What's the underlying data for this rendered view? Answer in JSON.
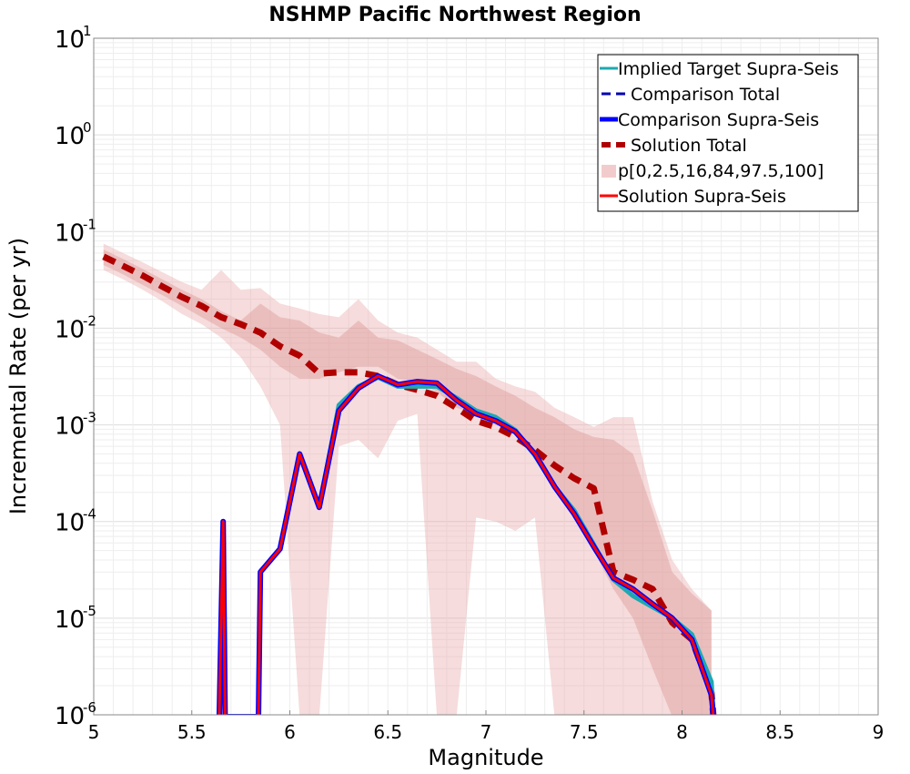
{
  "chart_data": {
    "type": "line",
    "title": "NSHMP Pacific Northwest Region",
    "xlabel": "Magnitude",
    "ylabel": "Incremental Rate (per yr)",
    "xlim": [
      5,
      9
    ],
    "ylim": [
      1e-06,
      10
    ],
    "yscale": "log",
    "grid": true,
    "legend_position": "top-right",
    "x_ticks": [
      "5",
      "5.5",
      "6",
      "6.5",
      "7",
      "7.5",
      "8",
      "8.5",
      "9"
    ],
    "y_ticks": [
      {
        "base": "10",
        "exp": "-6"
      },
      {
        "base": "10",
        "exp": "-5"
      },
      {
        "base": "10",
        "exp": "-4"
      },
      {
        "base": "10",
        "exp": "-3"
      },
      {
        "base": "10",
        "exp": "-2"
      },
      {
        "base": "10",
        "exp": "-1"
      },
      {
        "base": "10",
        "exp": "0"
      },
      {
        "base": "10",
        "exp": "1"
      }
    ],
    "legend": [
      {
        "label": "Implied Target Supra-Seis",
        "color": "#1fa8b0",
        "style": "solid"
      },
      {
        "label": "Comparison Total",
        "color": "#0000b0",
        "style": "dashed"
      },
      {
        "label": "Comparison Supra-Seis",
        "color": "#0000ff",
        "style": "thick"
      },
      {
        "label": "Solution Total",
        "color": "#b00000",
        "style": "dashed-thick"
      },
      {
        "label": "p[0,2.5,16,84,97.5,100]",
        "color": "#f2cccc",
        "style": "band"
      },
      {
        "label": "Solution Supra-Seis",
        "color": "#ff0000",
        "style": "solid"
      }
    ],
    "band_outer": {
      "x": [
        5.05,
        5.15,
        5.25,
        5.35,
        5.45,
        5.55,
        5.65,
        5.75,
        5.85,
        5.95,
        6.05,
        6.15,
        6.25,
        6.35,
        6.45,
        6.55,
        6.65,
        6.75,
        6.85,
        6.95,
        7.05,
        7.15,
        7.25,
        7.35,
        7.45,
        7.55,
        7.65,
        7.75,
        7.85,
        7.95,
        8.05,
        8.15
      ],
      "upper": [
        0.075,
        0.06,
        0.048,
        0.038,
        0.03,
        0.025,
        0.04,
        0.025,
        0.026,
        0.018,
        0.016,
        0.014,
        0.013,
        0.02,
        0.012,
        0.009,
        0.008,
        0.006,
        0.0045,
        0.0045,
        0.003,
        0.0025,
        0.0022,
        0.0015,
        0.0012,
        0.00095,
        0.0012,
        0.0012,
        0.00016,
        4e-05,
        2e-05,
        1.2e-05
      ],
      "lower": [
        0.04,
        0.032,
        0.025,
        0.019,
        0.014,
        0.011,
        0.008,
        0.005,
        0.0025,
        0.001,
        1e-07,
        1e-07,
        0.0006,
        0.0007,
        0.00045,
        0.0011,
        0.0013,
        1e-07,
        1e-07,
        0.00011,
        0.0001,
        8e-05,
        0.00011,
        1e-07,
        1e-07,
        1e-07,
        1e-07,
        1e-07,
        1e-07,
        1e-07,
        1e-07,
        1e-07
      ]
    },
    "band_inner": {
      "x": [
        5.05,
        5.15,
        5.25,
        5.35,
        5.45,
        5.55,
        5.65,
        5.75,
        5.85,
        5.95,
        6.05,
        6.15,
        6.25,
        6.35,
        6.45,
        6.55,
        6.65,
        6.75,
        6.85,
        6.95,
        7.05,
        7.15,
        7.25,
        7.35,
        7.45,
        7.55,
        7.65,
        7.75,
        7.85,
        7.95,
        8.05,
        8.15
      ],
      "upper": [
        0.065,
        0.052,
        0.041,
        0.032,
        0.025,
        0.02,
        0.015,
        0.012,
        0.018,
        0.013,
        0.012,
        0.009,
        0.008,
        0.012,
        0.008,
        0.0075,
        0.006,
        0.0048,
        0.0038,
        0.0032,
        0.0025,
        0.002,
        0.0015,
        0.0012,
        0.0009,
        0.00075,
        0.0007,
        0.0005,
        0.00013,
        3e-05,
        1.8e-05,
        1.2e-05
      ],
      "lower": [
        0.045,
        0.036,
        0.028,
        0.022,
        0.017,
        0.013,
        0.01,
        0.008,
        0.006,
        0.004,
        0.003,
        0.003,
        0.0035,
        0.004,
        0.004,
        0.003,
        0.0028,
        0.0022,
        0.0015,
        0.0013,
        0.001,
        0.0008,
        0.0005,
        0.00025,
        0.00012,
        5e-05,
        2e-05,
        1e-05,
        3e-06,
        1e-07,
        1e-07,
        1e-07
      ]
    },
    "series": [
      {
        "name": "Solution Total",
        "color": "#b00000",
        "x": [
          5.05,
          5.15,
          5.25,
          5.35,
          5.45,
          5.55,
          5.65,
          5.75,
          5.85,
          5.95,
          6.05,
          6.15,
          6.25,
          6.35,
          6.45,
          6.55,
          6.65,
          6.75,
          6.85,
          6.95,
          7.05,
          7.15,
          7.25,
          7.35,
          7.45,
          7.55,
          7.65,
          7.75,
          7.85,
          7.95,
          8.05,
          8.15,
          8.16
        ],
        "values": [
          0.055,
          0.044,
          0.035,
          0.027,
          0.021,
          0.017,
          0.013,
          0.011,
          0.009,
          0.0065,
          0.0052,
          0.0034,
          0.0035,
          0.0035,
          0.0032,
          0.0026,
          0.0023,
          0.002,
          0.0015,
          0.0011,
          0.00095,
          0.00075,
          0.00055,
          0.00038,
          0.00028,
          0.00022,
          3e-05,
          2.5e-05,
          2e-05,
          9e-06,
          6e-06,
          1.7e-06,
          9.5e-07
        ]
      },
      {
        "name": "Implied Target Supra-Seis",
        "color": "#1fa8b0",
        "x": [
          5.64,
          5.65,
          5.66,
          5.67,
          5.84,
          5.85,
          5.95,
          6.05,
          6.15,
          6.25,
          6.35,
          6.45,
          6.55,
          6.65,
          6.75,
          6.85,
          6.95,
          7.05,
          7.15,
          7.25,
          7.35,
          7.45,
          7.55,
          7.65,
          7.75,
          7.85,
          7.95,
          8.05,
          8.15,
          8.16
        ],
        "values": [
          9e-07,
          1e-05,
          0.0001,
          9e-07,
          9e-07,
          3e-05,
          5.2e-05,
          0.0005,
          0.00014,
          0.0016,
          0.0025,
          0.0031,
          0.0025,
          0.0025,
          0.0025,
          0.0019,
          0.0014,
          0.0012,
          0.00088,
          0.00048,
          0.00023,
          0.00013,
          5.8e-05,
          2.5e-05,
          1.7e-05,
          1.3e-05,
          1e-05,
          6.8e-06,
          2.2e-06,
          9e-07
        ]
      },
      {
        "name": "Comparison Supra-Seis",
        "color": "#0000ff",
        "x": [
          5.64,
          5.65,
          5.66,
          5.67,
          5.84,
          5.85,
          5.95,
          6.05,
          6.15,
          6.25,
          6.35,
          6.45,
          6.55,
          6.65,
          6.75,
          6.85,
          6.95,
          7.05,
          7.15,
          7.25,
          7.35,
          7.45,
          7.55,
          7.65,
          7.75,
          7.85,
          7.95,
          8.05,
          8.15,
          8.16
        ],
        "values": [
          9e-07,
          1e-05,
          0.0001,
          9e-07,
          9e-07,
          3e-05,
          5.2e-05,
          0.0005,
          0.00014,
          0.0014,
          0.0024,
          0.0032,
          0.0026,
          0.0028,
          0.0027,
          0.0018,
          0.0013,
          0.0011,
          0.00085,
          0.0005,
          0.00023,
          0.00012,
          5.5e-05,
          2.6e-05,
          2e-05,
          1.4e-05,
          1e-05,
          6e-06,
          1.6e-06,
          9e-07
        ]
      },
      {
        "name": "Solution Supra-Seis",
        "color": "#ff0000",
        "x": [
          5.64,
          5.65,
          5.66,
          5.67,
          5.84,
          5.85,
          5.95,
          6.05,
          6.15,
          6.25,
          6.35,
          6.45,
          6.55,
          6.65,
          6.75,
          6.85,
          6.95,
          7.05,
          7.15,
          7.25,
          7.35,
          7.45,
          7.55,
          7.65,
          7.75,
          7.85,
          7.95,
          8.05,
          8.15,
          8.16
        ],
        "values": [
          9e-07,
          1e-05,
          0.0001,
          9e-07,
          9e-07,
          3e-05,
          5.2e-05,
          0.0005,
          0.00014,
          0.0014,
          0.0024,
          0.0032,
          0.0026,
          0.0028,
          0.0027,
          0.0018,
          0.0013,
          0.0011,
          0.00085,
          0.0005,
          0.00023,
          0.00012,
          5.5e-05,
          2.6e-05,
          2e-05,
          1.4e-05,
          1e-05,
          6e-06,
          1.6e-06,
          9e-07
        ]
      }
    ]
  }
}
